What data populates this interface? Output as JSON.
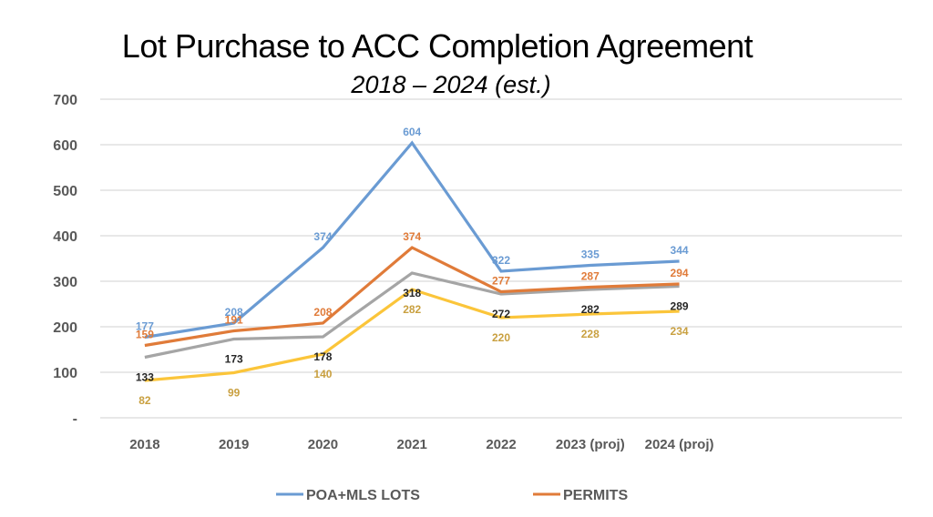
{
  "chart_data": {
    "type": "line",
    "title": "Lot Purchase to ACC Completion Agreement",
    "subtitle": "2018 – 2024 (est.)",
    "xlabel": "",
    "ylabel": "",
    "categories": [
      "2018",
      "2019",
      "2020",
      "2021",
      "2022",
      "2023 (proj)",
      "2024 (proj)"
    ],
    "extra_empty_category_slots": 2,
    "ylim": [
      0,
      700
    ],
    "yticks": [
      0,
      100,
      200,
      300,
      400,
      500,
      600,
      700
    ],
    "ytick_labels": [
      "-",
      "100",
      "200",
      "300",
      "400",
      "500",
      "600",
      "700"
    ],
    "grid": true,
    "legend_position": "bottom",
    "series": [
      {
        "name": "POA+MLS LOTS",
        "color": "#6A9BD3",
        "label_color": "#6A9BD3",
        "in_legend": true,
        "label_position": "above",
        "values": [
          177,
          208,
          374,
          604,
          322,
          335,
          344
        ]
      },
      {
        "name": "PERMITS",
        "color": "#E07B39",
        "label_color": "#E07B39",
        "in_legend": true,
        "label_position": "above",
        "values": [
          159,
          191,
          208,
          374,
          277,
          287,
          294
        ]
      },
      {
        "name": "",
        "color": "#A5A5A5",
        "label_color": "#262626",
        "in_legend": false,
        "label_position": "below",
        "values": [
          133,
          173,
          178,
          318,
          272,
          282,
          289
        ]
      },
      {
        "name": "",
        "color": "#FBC53A",
        "label_color": "#C9A040",
        "in_legend": false,
        "label_position": "below",
        "values": [
          82,
          99,
          140,
          282,
          220,
          228,
          234
        ]
      }
    ]
  }
}
